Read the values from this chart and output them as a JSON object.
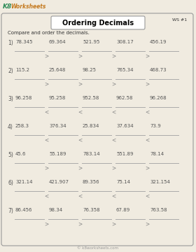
{
  "title": "Ordering Decimals",
  "subtitle": "WS #1",
  "instruction": "Compare and order the decimals.",
  "footer": "© k8worksheets.com",
  "problems": [
    {
      "num": "1)",
      "values": [
        "78.345",
        "69.364",
        "521.95",
        "308.17",
        "456.19"
      ],
      "symbol": ">"
    },
    {
      "num": "2)",
      "values": [
        "115.2",
        "25.648",
        "98.25",
        "765.34",
        "468.73"
      ],
      "symbol": ">"
    },
    {
      "num": "3)",
      "values": [
        "96.258",
        "95.258",
        "952.58",
        "962.58",
        "96.268"
      ],
      "symbol": "<"
    },
    {
      "num": "4)",
      "values": [
        "258.3",
        "376.34",
        "25.834",
        "37.634",
        "73.9"
      ],
      "symbol": "<"
    },
    {
      "num": "5)",
      "values": [
        "45.6",
        "55.189",
        "783.14",
        "551.89",
        "78.14"
      ],
      "symbol": ">"
    },
    {
      "num": "6)",
      "values": [
        "321.14",
        "421.907",
        "89.356",
        "75.14",
        "321.154"
      ],
      "symbol": "<"
    },
    {
      "num": "7)",
      "values": [
        "86.456",
        "98.34",
        "76.358",
        "67.89",
        "763.58"
      ],
      "symbol": ">"
    }
  ],
  "bg_color": "#f0ebe0",
  "border_color": "#999999",
  "text_color": "#333333",
  "logo_k8_color": "#2e8b57",
  "logo_w_color": "#8b4513",
  "title_box_color": "#ffffff",
  "line_color": "#aaaaaa",
  "symbol_color": "#888888",
  "number_color": "#555555",
  "value_color": "#555555",
  "footer_color": "#999999"
}
